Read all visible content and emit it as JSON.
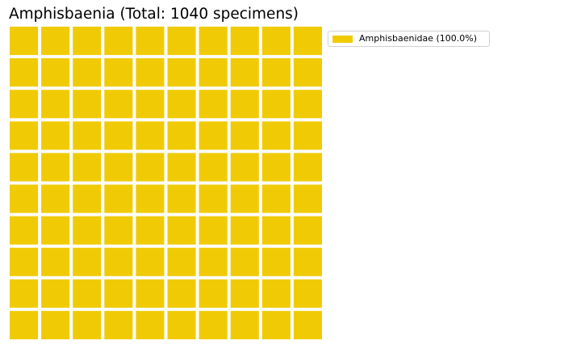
{
  "chart_data": {
    "type": "waffle",
    "title": "Amphisbaenia (Total: 1040 specimens)",
    "total_specimens": 1040,
    "grid_rows": 10,
    "grid_cols": 10,
    "categories": [
      "Amphisbaenidae"
    ],
    "values": [
      1040
    ],
    "percentages": [
      100.0
    ],
    "cells_per_category": [
      100
    ],
    "colors": [
      "#f0cb05"
    ],
    "legend": {
      "placement": "right-top",
      "entries": [
        "Amphisbaenidae (100.0%)"
      ]
    },
    "grid": false,
    "axes_visible": false
  }
}
